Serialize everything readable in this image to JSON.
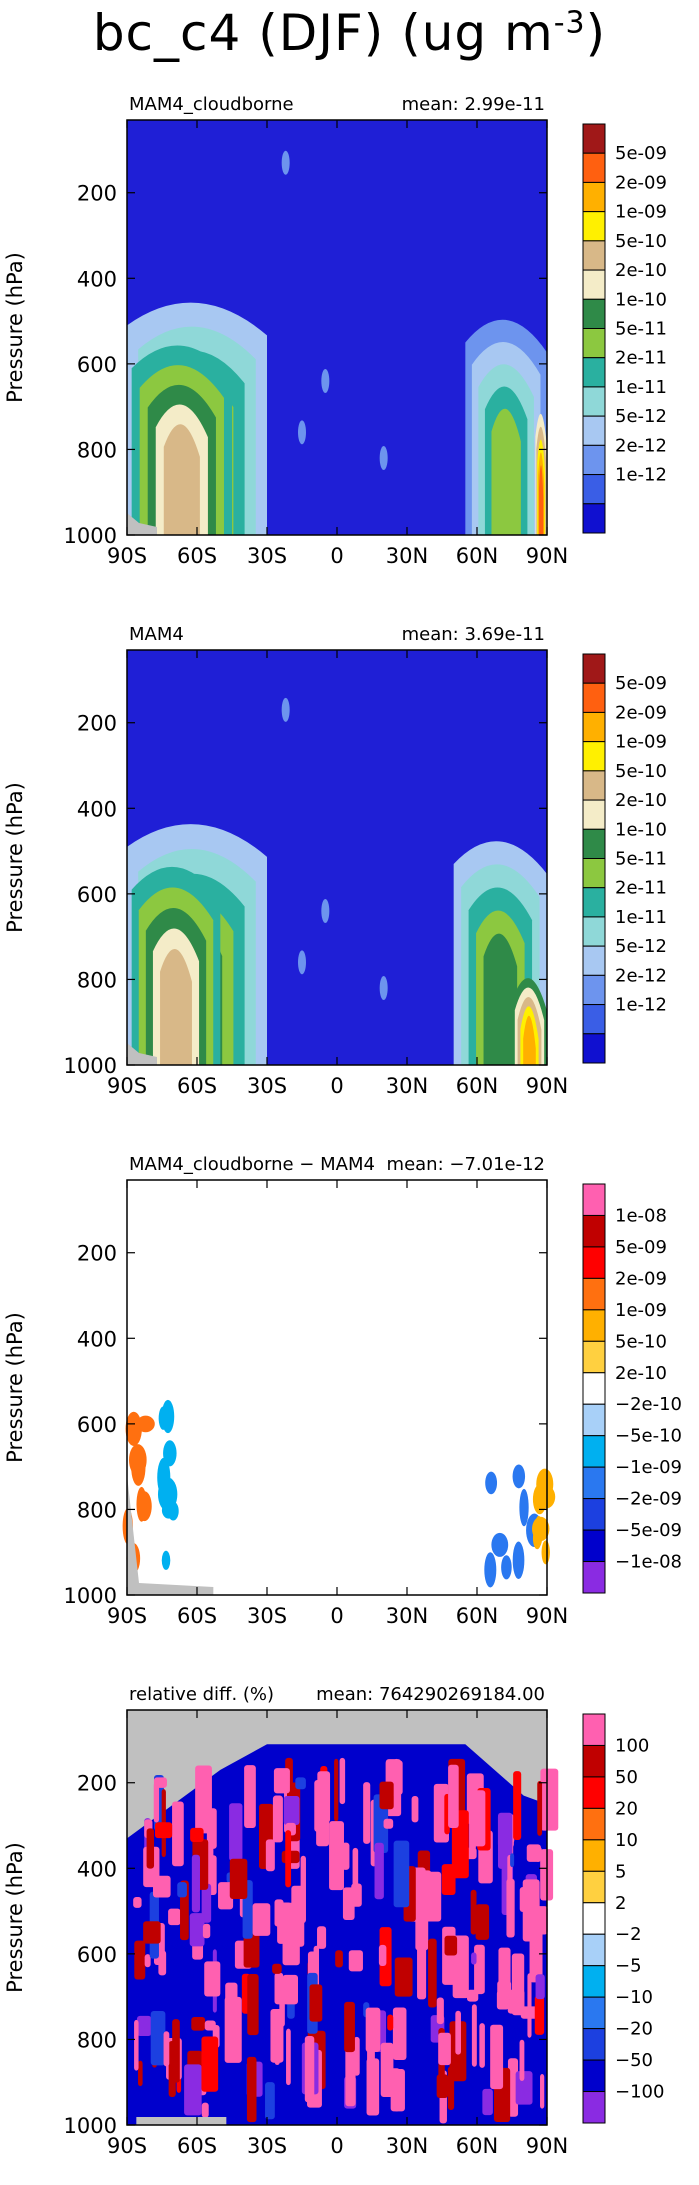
{
  "title": {
    "variable": "bc_c4",
    "season": "(DJF)",
    "units_prefix": "(ug m",
    "units_exp": "-3",
    "units_suffix": ")"
  },
  "colors": {
    "plot_background": "#1f1fd6",
    "missing_gray": "#c0c0c0",
    "abs_scale": [
      "#1010d0",
      "#3a5ee6",
      "#6d94ee",
      "#a8c8f2",
      "#8fd8d8",
      "#2ab0a0",
      "#8cc840",
      "#2f8a48",
      "#f4ecc8",
      "#d8b888",
      "#fff000",
      "#ffb000",
      "#ff6010",
      "#a01818"
    ],
    "diff_scale": [
      "#8a2be2",
      "#0000cc",
      "#1c40e0",
      "#2a78f0",
      "#00b0f0",
      "#a8d0f8",
      "#ffffff",
      "#ffd040",
      "#ffb000",
      "#ff7010",
      "#ff0000",
      "#c00000",
      "#ff60b0"
    ]
  },
  "chart_data": [
    {
      "type": "heatmap",
      "title": "MAM4_cloudborne",
      "stat_label": "mean:",
      "stat_value": "2.99e-11",
      "ylabel": "Pressure (hPa)",
      "x_ticks": [
        "90S",
        "60S",
        "30S",
        "0",
        "30N",
        "60N",
        "90N"
      ],
      "y_ticks": [
        "200",
        "400",
        "600",
        "800",
        "1000"
      ],
      "xlim": [
        -90,
        90
      ],
      "ylim": [
        1000,
        30
      ],
      "colorbar_labels": [
        "5e-09",
        "2e-09",
        "1e-09",
        "5e-10",
        "2e-10",
        "1e-10",
        "5e-11",
        "2e-11",
        "1e-11",
        "5e-12",
        "2e-12",
        "1e-12"
      ],
      "colorbar_palette": "abs_scale",
      "regions": [
        {
          "name": "southern-high-lat",
          "lat_range": [
            -90,
            -30
          ],
          "p_top": 440,
          "level_index": 7
        },
        {
          "name": "southern-core",
          "lat_range": [
            -88,
            -45
          ],
          "p_top": 540,
          "level_index": 9
        },
        {
          "name": "northern-high-lat",
          "lat_range": [
            55,
            90
          ],
          "p_top": 480,
          "level_index": 6
        },
        {
          "name": "arctic-maximum",
          "lat_range": [
            85,
            90
          ],
          "p_top": 700,
          "level_index": 12
        }
      ]
    },
    {
      "type": "heatmap",
      "title": "MAM4",
      "stat_label": "mean:",
      "stat_value": "3.69e-11",
      "ylabel": "Pressure (hPa)",
      "x_ticks": [
        "90S",
        "60S",
        "30S",
        "0",
        "30N",
        "60N",
        "90N"
      ],
      "y_ticks": [
        "200",
        "400",
        "600",
        "800",
        "1000"
      ],
      "xlim": [
        -90,
        90
      ],
      "ylim": [
        1000,
        30
      ],
      "colorbar_labels": [
        "5e-09",
        "2e-09",
        "1e-09",
        "5e-10",
        "2e-10",
        "1e-10",
        "5e-11",
        "2e-11",
        "1e-11",
        "5e-12",
        "2e-12",
        "1e-12"
      ],
      "colorbar_palette": "abs_scale",
      "regions": [
        {
          "name": "southern-high-lat",
          "lat_range": [
            -90,
            -30
          ],
          "p_top": 420,
          "level_index": 7
        },
        {
          "name": "southern-core",
          "lat_range": [
            -88,
            -50
          ],
          "p_top": 520,
          "level_index": 9
        },
        {
          "name": "northern-high-lat",
          "lat_range": [
            50,
            90
          ],
          "p_top": 460,
          "level_index": 7
        },
        {
          "name": "arctic-maximum",
          "lat_range": [
            75,
            90
          ],
          "p_top": 780,
          "level_index": 11
        }
      ]
    },
    {
      "type": "heatmap",
      "title": "MAM4_cloudborne − MAM4",
      "stat_label": "mean:",
      "stat_value": "−7.01e-12",
      "ylabel": "Pressure (hPa)",
      "x_ticks": [
        "90S",
        "60S",
        "30S",
        "0",
        "30N",
        "60N",
        "90N"
      ],
      "y_ticks": [
        "200",
        "400",
        "600",
        "800",
        "1000"
      ],
      "xlim": [
        -90,
        90
      ],
      "ylim": [
        1000,
        30
      ],
      "colorbar_labels": [
        "1e-08",
        "5e-09",
        "2e-09",
        "1e-09",
        "5e-10",
        "2e-10",
        "−2e-10",
        "−5e-10",
        "−1e-09",
        "−2e-09",
        "−5e-09",
        "−1e-08"
      ],
      "colorbar_palette": "diff_scale",
      "regions": [
        {
          "name": "antarctic-positive",
          "lat_range": [
            -90,
            -82
          ],
          "p_top": 580,
          "level_index": 9
        },
        {
          "name": "antarctic-negative",
          "lat_range": [
            -75,
            -70
          ],
          "p_top": 560,
          "level_index": 4
        },
        {
          "name": "arctic-negative",
          "lat_range": [
            60,
            90
          ],
          "p_top": 720,
          "level_index": 3
        },
        {
          "name": "arctic-positive",
          "lat_range": [
            85,
            90
          ],
          "p_top": 740,
          "level_index": 8
        }
      ]
    },
    {
      "type": "heatmap",
      "title": "relative diff. (%)",
      "stat_label": "mean:",
      "stat_value": "764290269184.00",
      "ylabel": "Pressure (hPa)",
      "x_ticks": [
        "90S",
        "60S",
        "30S",
        "0",
        "30N",
        "60N",
        "90N"
      ],
      "y_ticks": [
        "200",
        "400",
        "600",
        "800",
        "1000"
      ],
      "xlim": [
        -90,
        90
      ],
      "ylim": [
        1000,
        30
      ],
      "colorbar_labels": [
        "100",
        "50",
        "20",
        "10",
        "5",
        "2",
        "−2",
        "−5",
        "−10",
        "−20",
        "−50",
        "−100"
      ],
      "colorbar_palette": "diff_scale",
      "regions": [
        {
          "name": "southern-pink",
          "lat_range": [
            -88,
            -60
          ],
          "p_top": 300,
          "level_index": 12
        },
        {
          "name": "tropical-pink",
          "lat_range": [
            -30,
            20
          ],
          "p_top": 120,
          "level_index": 12
        },
        {
          "name": "northern-pink",
          "lat_range": [
            25,
            70
          ],
          "p_top": 120,
          "level_index": 12
        },
        {
          "name": "broad-negative",
          "lat_range": [
            -90,
            90
          ],
          "p_top": 130,
          "level_index": 0
        }
      ]
    }
  ]
}
